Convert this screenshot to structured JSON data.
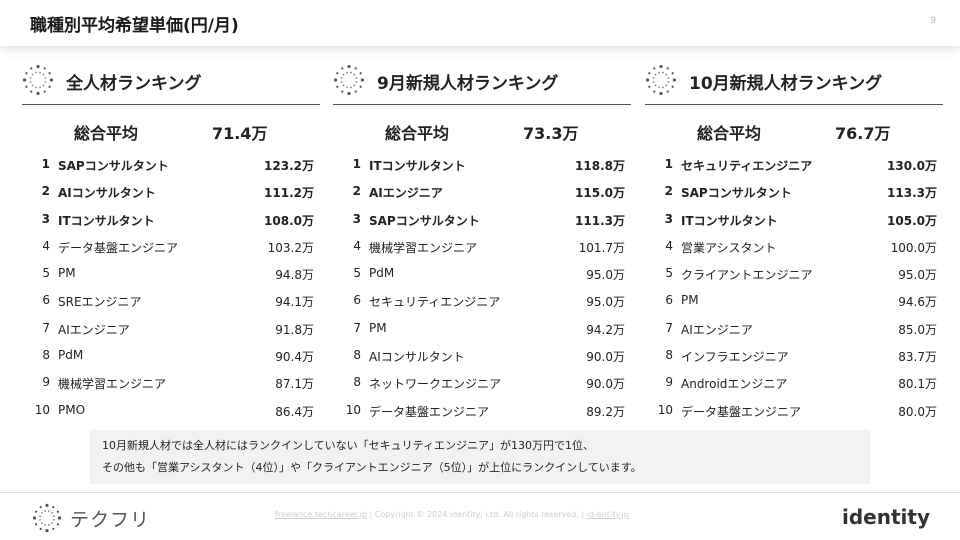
{
  "header": {
    "title": "職種別平均希望単価(円/月)",
    "page_number": "9"
  },
  "columns": [
    {
      "title": "全人材ランキング",
      "avg_label": "総合平均",
      "avg_value": "71.4万",
      "rows": [
        {
          "rank": "1",
          "name": "SAPコンサルタント",
          "value": "123.2万"
        },
        {
          "rank": "2",
          "name": "AIコンサルタント",
          "value": "111.2万"
        },
        {
          "rank": "3",
          "name": "ITコンサルタント",
          "value": "108.0万"
        },
        {
          "rank": "4",
          "name": "データ基盤エンジニア",
          "value": "103.2万"
        },
        {
          "rank": "5",
          "name": "PM",
          "value": "94.8万"
        },
        {
          "rank": "6",
          "name": "SREエンジニア",
          "value": "94.1万"
        },
        {
          "rank": "7",
          "name": "AIエンジニア",
          "value": "91.8万"
        },
        {
          "rank": "8",
          "name": "PdM",
          "value": "90.4万"
        },
        {
          "rank": "9",
          "name": "機械学習エンジニア",
          "value": "87.1万"
        },
        {
          "rank": "10",
          "name": "PMO",
          "value": "86.4万"
        }
      ]
    },
    {
      "title": "9月新規人材ランキング",
      "avg_label": "総合平均",
      "avg_value": "73.3万",
      "rows": [
        {
          "rank": "1",
          "name": "ITコンサルタント",
          "value": "118.8万"
        },
        {
          "rank": "2",
          "name": "AIエンジニア",
          "value": "115.0万"
        },
        {
          "rank": "3",
          "name": "SAPコンサルタント",
          "value": "111.3万"
        },
        {
          "rank": "4",
          "name": "機械学習エンジニア",
          "value": "101.7万"
        },
        {
          "rank": "5",
          "name": "PdM",
          "value": "95.0万"
        },
        {
          "rank": "6",
          "name": "セキュリティエンジニア",
          "value": "95.0万"
        },
        {
          "rank": "7",
          "name": "PM",
          "value": "94.2万"
        },
        {
          "rank": "8",
          "name": "AIコンサルタント",
          "value": "90.0万"
        },
        {
          "rank": "8",
          "name": "ネットワークエンジニア",
          "value": "90.0万"
        },
        {
          "rank": "10",
          "name": "データ基盤エンジニア",
          "value": "89.2万"
        }
      ]
    },
    {
      "title": "10月新規人材ランキング",
      "avg_label": "総合平均",
      "avg_value": "76.7万",
      "rows": [
        {
          "rank": "1",
          "name": "セキュリティエンジニア",
          "value": "130.0万"
        },
        {
          "rank": "2",
          "name": "SAPコンサルタント",
          "value": "113.3万"
        },
        {
          "rank": "3",
          "name": "ITコンサルタント",
          "value": "105.0万"
        },
        {
          "rank": "4",
          "name": "営業アシスタント",
          "value": "100.0万"
        },
        {
          "rank": "5",
          "name": "クライアントエンジニア",
          "value": "95.0万"
        },
        {
          "rank": "6",
          "name": "PM",
          "value": "94.6万"
        },
        {
          "rank": "7",
          "name": "AIエンジニア",
          "value": "85.0万"
        },
        {
          "rank": "8",
          "name": "インフラエンジニア",
          "value": "83.7万"
        },
        {
          "rank": "9",
          "name": "Androidエンジニア",
          "value": "80.1万"
        },
        {
          "rank": "10",
          "name": "データ基盤エンジニア",
          "value": "80.0万"
        }
      ]
    }
  ],
  "note": {
    "line1": "10月新規人材では全人材にはランクインしていない「セキュリティエンジニア」が130万円で1位、",
    "line2": "その他も「営業アシスタント（4位）」や「クライアントエンジニア（5位）」が上位にランクインしています。"
  },
  "footer": {
    "logo_text": "テクフリ",
    "link1": "freelance.techcareer.jp",
    "sep": " | ",
    "copyright": "Copyright © 2024 identity, Ltd. All rights reserved.",
    "link2": "id-entity.jp",
    "brand": "identity"
  }
}
